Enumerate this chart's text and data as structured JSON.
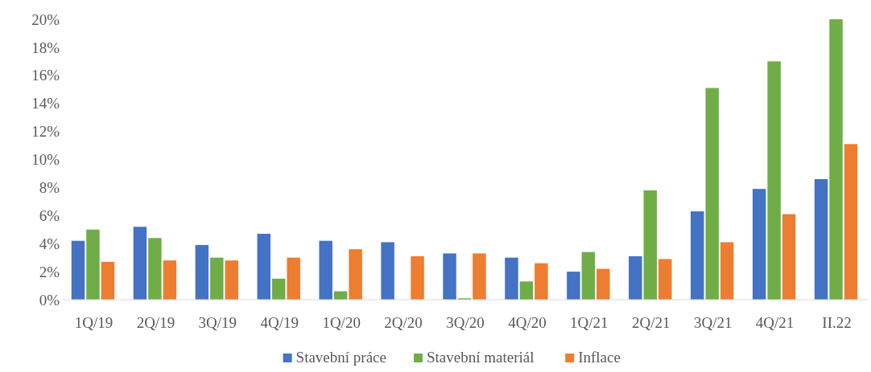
{
  "chart_data": {
    "type": "bar",
    "categories": [
      "1Q/19",
      "2Q/19",
      "3Q/19",
      "4Q/19",
      "1Q/20",
      "2Q/20",
      "3Q/20",
      "4Q/20",
      "1Q/21",
      "2Q/21",
      "3Q/21",
      "4Q/21",
      "II.22"
    ],
    "series": [
      {
        "name": "Stavební práce",
        "color": "#4472c4",
        "values": [
          4.2,
          5.2,
          3.9,
          4.7,
          4.2,
          4.1,
          3.3,
          3.0,
          2.0,
          3.1,
          6.3,
          7.9,
          8.6
        ]
      },
      {
        "name": "Stavební materiál",
        "color": "#70ad47",
        "values": [
          5.0,
          4.4,
          3.0,
          1.5,
          0.6,
          0,
          0.1,
          1.3,
          3.4,
          7.8,
          15.1,
          17.0,
          20.0
        ]
      },
      {
        "name": "Inflace",
        "color": "#ed7d31",
        "values": [
          2.7,
          2.8,
          2.8,
          3.0,
          3.6,
          3.1,
          3.3,
          2.6,
          2.2,
          2.9,
          4.1,
          6.1,
          11.1
        ]
      }
    ],
    "ylim": [
      0,
      20
    ],
    "yticks": [
      {
        "value": 0,
        "label": "0%"
      },
      {
        "value": 2,
        "label": "2%"
      },
      {
        "value": 4,
        "label": "4%"
      },
      {
        "value": 6,
        "label": "6%"
      },
      {
        "value": 8,
        "label": "8%"
      },
      {
        "value": 10,
        "label": "10%"
      },
      {
        "value": 12,
        "label": "12%"
      },
      {
        "value": 14,
        "label": "14%"
      },
      {
        "value": 16,
        "label": "16%"
      },
      {
        "value": 18,
        "label": "18%"
      },
      {
        "value": 20,
        "label": "20%"
      }
    ],
    "grid": false,
    "legend": "bottom"
  }
}
